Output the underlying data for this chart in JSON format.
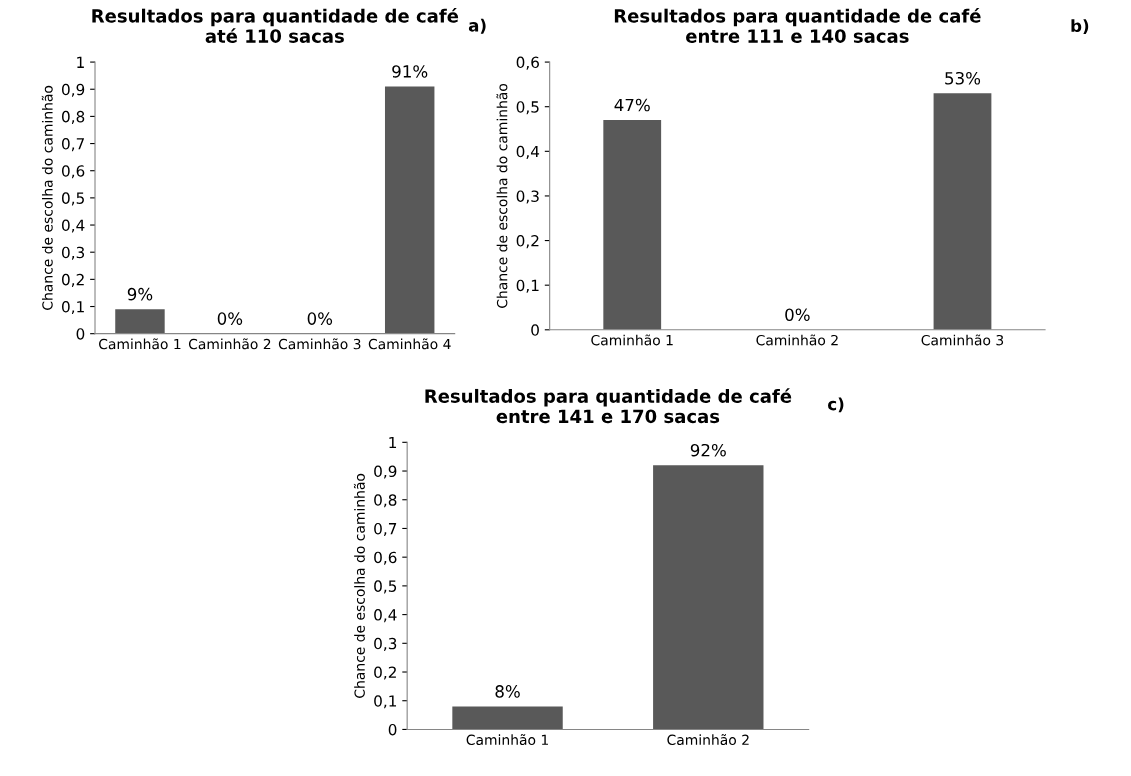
{
  "chart_data": [
    {
      "type": "bar",
      "title": "Resultados para quantidade de café\naté 110 sacas",
      "ylabel": "Chance de escolha do caminhão",
      "annotations": [
        "a)"
      ],
      "categories": [
        "Caminhão 1",
        "Caminhão 2",
        "Caminhão 3",
        "Caminhão 4"
      ],
      "values": [
        0.09,
        0,
        0,
        0.91
      ],
      "value_labels": [
        "9%",
        "0%",
        "0%",
        "91%"
      ],
      "color": "#595959",
      "ylim": [
        0,
        1
      ],
      "yticks": [
        0,
        {
          "value": 0.1,
          "label": "0,1"
        },
        {
          "value": 0.2,
          "label": "0,2"
        },
        {
          "value": 0.3,
          "label": "0,3"
        },
        {
          "value": 0.4,
          "label": "0,4"
        },
        {
          "value": 0.5,
          "label": "0,5"
        },
        {
          "value": 0.6,
          "label": "0,6"
        },
        {
          "value": 0.7,
          "label": "0,7"
        },
        {
          "value": 0.8,
          "label": "0,8"
        },
        {
          "value": 0.9,
          "label": "0,9"
        },
        1
      ]
    },
    {
      "type": "bar",
      "title": "Resultados para quantidade de café\nentre 111 e 140 sacas",
      "ylabel": "Chance de escolha do caminhão",
      "annotations": [
        "b)"
      ],
      "categories": [
        "Caminhão 1",
        "Caminhão 2",
        "Caminhão 3"
      ],
      "values": [
        0.47,
        0,
        0.53
      ],
      "value_labels": [
        "47%",
        "0%",
        "53%"
      ],
      "color": "#595959",
      "ylim": [
        0,
        0.6
      ],
      "yticks": [
        0,
        {
          "value": 0.1,
          "label": "0,1"
        },
        {
          "value": 0.2,
          "label": "0,2"
        },
        {
          "value": 0.3,
          "label": "0,3"
        },
        {
          "value": 0.4,
          "label": "0,4"
        },
        {
          "value": 0.5,
          "label": "0,5"
        },
        {
          "value": 0.6,
          "label": "0,6"
        }
      ]
    },
    {
      "type": "bar",
      "title": "Resultados para quantidade de café\nentre 141 e 170 sacas",
      "ylabel": "Chance de escolha do caminhão",
      "annotations": [
        "c)"
      ],
      "categories": [
        "Caminhão 1",
        "Caminhão 2"
      ],
      "values": [
        0.08,
        0.92
      ],
      "value_labels": [
        "8%",
        "92%"
      ],
      "color": "#595959",
      "ylim": [
        0,
        1
      ],
      "yticks": [
        0,
        {
          "value": 0.1,
          "label": "0,1"
        },
        {
          "value": 0.2,
          "label": "0,2"
        },
        {
          "value": 0.3,
          "label": "0,3"
        },
        {
          "value": 0.4,
          "label": "0,4"
        },
        {
          "value": 0.5,
          "label": "0,5"
        },
        {
          "value": 0.6,
          "label": "0,6"
        },
        {
          "value": 0.7,
          "label": "0,7"
        },
        {
          "value": 0.8,
          "label": "0,8"
        },
        {
          "value": 0.9,
          "label": "0,9"
        },
        1
      ]
    }
  ]
}
